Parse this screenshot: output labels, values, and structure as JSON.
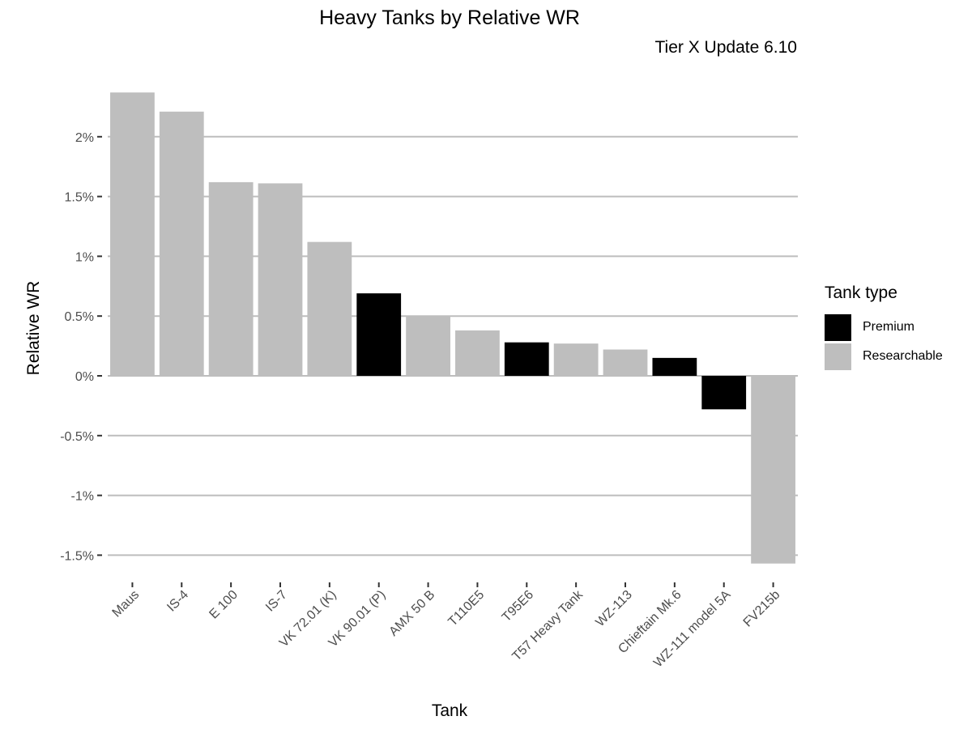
{
  "chart_data": {
    "type": "bar",
    "title": "Heavy Tanks by Relative WR",
    "subtitle": "Tier X Update 6.10",
    "xlabel": "Tank",
    "ylabel": "Relative WR",
    "categories": [
      "Maus",
      "IS-4",
      "E 100",
      "IS-7",
      "VK 72.01 (K)",
      "VK 90.01 (P)",
      "AMX 50 B",
      "T110E5",
      "T95E6",
      "T57 Heavy Tank",
      "WZ-113",
      "Chieftain Mk.6",
      "WZ-111 model 5A",
      "FV215b"
    ],
    "values": [
      0.0237,
      0.0221,
      0.0162,
      0.0161,
      0.0112,
      0.0069,
      0.005,
      0.0038,
      0.0028,
      0.0027,
      0.0022,
      0.0015,
      -0.0028,
      -0.0157
    ],
    "types": [
      "Researchable",
      "Researchable",
      "Researchable",
      "Researchable",
      "Researchable",
      "Premium",
      "Researchable",
      "Researchable",
      "Premium",
      "Researchable",
      "Researchable",
      "Premium",
      "Premium",
      "Researchable"
    ],
    "ylim": [
      -0.0172,
      0.0245
    ],
    "yticks": [
      -0.015,
      -0.01,
      -0.005,
      0,
      0.005,
      0.01,
      0.015,
      0.02
    ],
    "ytick_labels": [
      "-1.5%",
      "-1%",
      "-0.5%",
      "0%",
      "0.5%",
      "1%",
      "1.5%",
      "2%"
    ],
    "grid": true,
    "legend": {
      "title": "Tank type",
      "placement": "right",
      "entries": [
        {
          "name": "Premium",
          "color": "#000000"
        },
        {
          "name": "Researchable",
          "color": "#bebebe"
        }
      ]
    }
  }
}
